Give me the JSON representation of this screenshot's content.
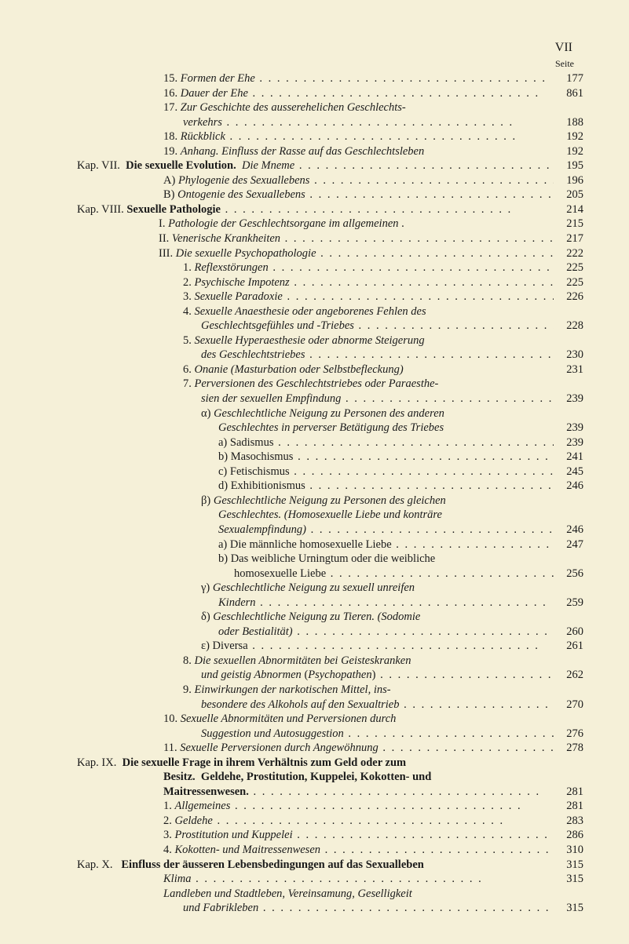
{
  "page_roman": "VII",
  "seite_label": "Seite",
  "lines": [
    {
      "cls": "row",
      "ind": "i1",
      "text": "15. <i>Formen der Ehe</i>",
      "pg": "177"
    },
    {
      "cls": "row",
      "ind": "i1",
      "text": "16. <i>Dauer der Ehe</i>",
      "pg": "861"
    },
    {
      "cls": "row",
      "ind": "i1",
      "text": "17. <i>Zur Geschichte des ausserehelichen Geschlechts-</i>",
      "pg": "",
      "nodots": true
    },
    {
      "cls": "row",
      "ind": "i2",
      "text": "<i>verkehrs</i>",
      "pg": "188"
    },
    {
      "cls": "row",
      "ind": "i1",
      "text": "18. <i>Rückblick</i>",
      "pg": "192"
    },
    {
      "cls": "row",
      "ind": "i1",
      "text": "19. <i>Anhang. Einfluss der Rasse auf das Geschlechtsleben</i>",
      "pg": "192",
      "nodots": true
    },
    {
      "cls": "row",
      "ind": "kap",
      "text": "Kap. VII.&nbsp;&nbsp;<b>Die sexuelle Evolution.</b>&nbsp;&nbsp;<i>Die Mneme</i>",
      "pg": "195"
    },
    {
      "cls": "row",
      "ind": "i1",
      "text": "A) <i>Phylogenie des Sexuallebens</i>",
      "pg": "196"
    },
    {
      "cls": "row",
      "ind": "i1",
      "text": "B) <i>Ontogenie des Sexuallebens</i>",
      "pg": "205"
    },
    {
      "cls": "row",
      "ind": "kap",
      "text": "Kap. VIII.&nbsp;<b>Sexuelle Pathologie</b>",
      "pg": "214"
    },
    {
      "cls": "row",
      "ind": "rom",
      "text": "I. <i>Pathologie der Geschlechtsorgane im allgemeinen</i> .",
      "pg": "215",
      "nodots": true
    },
    {
      "cls": "row",
      "ind": "rom",
      "text": "II. <i>Venerische Krankheiten</i>",
      "pg": "217"
    },
    {
      "cls": "row",
      "ind": "rom",
      "text": "III. <i>Die sexuelle Psychopathologie</i>",
      "pg": "222"
    },
    {
      "cls": "row",
      "ind": "i2",
      "text": "1. <i>Reflexstörungen</i>",
      "pg": "225"
    },
    {
      "cls": "row",
      "ind": "i2",
      "text": "2. <i>Psychische Impotenz</i>",
      "pg": "225"
    },
    {
      "cls": "row",
      "ind": "i2",
      "text": "3. <i>Sexuelle Paradoxie</i>",
      "pg": "226"
    },
    {
      "cls": "row",
      "ind": "i2",
      "text": "4. <i>Sexuelle Anaesthesie oder angeborenes Fehlen des</i>",
      "pg": "",
      "nodots": true
    },
    {
      "cls": "row",
      "ind": "i3",
      "text": "<i>Geschlechtsgefühles und -Triebes</i>",
      "pg": "228"
    },
    {
      "cls": "row",
      "ind": "i2",
      "text": "5. <i>Sexuelle Hyperaesthesie oder abnorme Steigerung</i>",
      "pg": "",
      "nodots": true
    },
    {
      "cls": "row",
      "ind": "i3",
      "text": "<i>des Geschlechtstriebes</i>",
      "pg": "230"
    },
    {
      "cls": "row",
      "ind": "i2",
      "text": "6. <i>Onanie (Masturbation oder Selbstbefleckung)</i>",
      "pg": "231",
      "nodots": true
    },
    {
      "cls": "row",
      "ind": "i2",
      "text": "7. <i>Perversionen des Geschlechtstriebes oder Paraesthe-</i>",
      "pg": "",
      "nodots": true
    },
    {
      "cls": "row",
      "ind": "i3",
      "text": "<i>sien der sexuellen Empfindung</i>",
      "pg": "239"
    },
    {
      "cls": "row",
      "ind": "i3",
      "text": "α) <i>Geschlechtliche Neigung zu Personen des anderen</i>",
      "pg": "",
      "nodots": true
    },
    {
      "cls": "row",
      "ind": "i4",
      "text": "<i>Geschlechtes in perverser Betätigung des Triebes</i>",
      "pg": "239",
      "nodots": true
    },
    {
      "cls": "row",
      "ind": "i4",
      "text": "a) Sadismus",
      "pg": "239"
    },
    {
      "cls": "row",
      "ind": "i4",
      "text": "b) Masochismus",
      "pg": "241"
    },
    {
      "cls": "row",
      "ind": "i4",
      "text": "c) Fetischismus",
      "pg": "245"
    },
    {
      "cls": "row",
      "ind": "i4",
      "text": "d) Exhibitionismus",
      "pg": "246"
    },
    {
      "cls": "row",
      "ind": "i3",
      "text": "β) <i>Geschlechtliche Neigung zu Personen des gleichen</i>",
      "pg": "",
      "nodots": true
    },
    {
      "cls": "row",
      "ind": "i4",
      "text": "<i>Geschlechtes. (Homosexuelle Liebe und konträre</i>",
      "pg": "",
      "nodots": true
    },
    {
      "cls": "row",
      "ind": "i4",
      "text": "<i>Sexualempfindung)</i>",
      "pg": "246"
    },
    {
      "cls": "row",
      "ind": "i4",
      "text": "a) Die männliche homosexuelle Liebe",
      "pg": "247"
    },
    {
      "cls": "row",
      "ind": "i4",
      "text": "b) Das weibliche Urningtum oder die weibliche",
      "pg": "",
      "nodots": true
    },
    {
      "cls": "row",
      "ind": "i5",
      "text": "homosexuelle Liebe",
      "pg": "256"
    },
    {
      "cls": "row",
      "ind": "i3",
      "text": "γ) <i>Geschlechtliche Neigung zu sexuell unreifen</i>",
      "pg": "",
      "nodots": true
    },
    {
      "cls": "row",
      "ind": "i4",
      "text": "<i>Kindern</i>",
      "pg": "259"
    },
    {
      "cls": "row",
      "ind": "i3",
      "text": "δ) <i>Geschlechtliche Neigung zu Tieren. (Sodomie</i>",
      "pg": "",
      "nodots": true
    },
    {
      "cls": "row",
      "ind": "i4",
      "text": "<i>oder Bestialität)</i>",
      "pg": "260"
    },
    {
      "cls": "row",
      "ind": "i3",
      "text": "ε) Diversa",
      "pg": "261"
    },
    {
      "cls": "row",
      "ind": "i2",
      "text": "8. <i>Die sexuellen Abnormitäten bei Geisteskranken</i>",
      "pg": "",
      "nodots": true
    },
    {
      "cls": "row",
      "ind": "i3",
      "text": "<i>und geistig Abnormen</i> (<i>Psychopathen</i>)",
      "pg": "262"
    },
    {
      "cls": "row",
      "ind": "i2",
      "text": "9. <i>Einwirkungen der narkotischen Mittel, ins-</i>",
      "pg": "",
      "nodots": true
    },
    {
      "cls": "row",
      "ind": "i3",
      "text": "<i>besondere des Alkohols auf den Sexualtrieb</i>",
      "pg": "270"
    },
    {
      "cls": "row",
      "ind": "i1",
      "text": "10. <i>Sexuelle Abnormitäten und Perversionen durch</i>",
      "pg": "",
      "nodots": true
    },
    {
      "cls": "row",
      "ind": "i3",
      "text": "<i>Suggestion und Autosuggestion</i>",
      "pg": "276"
    },
    {
      "cls": "row",
      "ind": "i1",
      "text": "11. <i>Sexuelle Perversionen durch Angewöhnung</i>",
      "pg": "278"
    },
    {
      "cls": "row",
      "ind": "kap",
      "text": "Kap. IX.&nbsp;&nbsp;<b>Die sexuelle Frage in ihrem Verhältnis zum Geld oder zum</b>",
      "pg": "",
      "nodots": true
    },
    {
      "cls": "row",
      "ind": "i1",
      "text": "<b>Besitz.&nbsp;&nbsp;Geldehe, Prostitution, Kuppelei, Kokotten- und</b>",
      "pg": "",
      "nodots": true
    },
    {
      "cls": "row",
      "ind": "i1",
      "text": "<b>Maitressenwesen.</b>",
      "pg": "281"
    },
    {
      "cls": "row",
      "ind": "i1",
      "text": "1. <i>Allgemeines</i>",
      "pg": "281"
    },
    {
      "cls": "row",
      "ind": "i1",
      "text": "2. <i>Geldehe</i>",
      "pg": "283"
    },
    {
      "cls": "row",
      "ind": "i1",
      "text": "3. <i>Prostitution und Kuppelei</i>",
      "pg": "286"
    },
    {
      "cls": "row",
      "ind": "i1",
      "text": "4. <i>Kokotten- und Maitressenwesen</i>",
      "pg": "310"
    },
    {
      "cls": "row",
      "ind": "kap",
      "text": "Kap. X.&nbsp;&nbsp;&nbsp;<b>Einfluss der äusseren Lebensbedingungen auf das Sexualleben</b>",
      "pg": "315",
      "nodots": true
    },
    {
      "cls": "row",
      "ind": "i1",
      "text": "<i>Klima</i>",
      "pg": "315"
    },
    {
      "cls": "row",
      "ind": "i1",
      "text": "<i>Landleben und Stadtleben, Vereinsamung, Geselligkeit</i>",
      "pg": "",
      "nodots": true
    },
    {
      "cls": "row",
      "ind": "i2",
      "text": "<i>und Fabrikleben</i>",
      "pg": "315"
    }
  ]
}
